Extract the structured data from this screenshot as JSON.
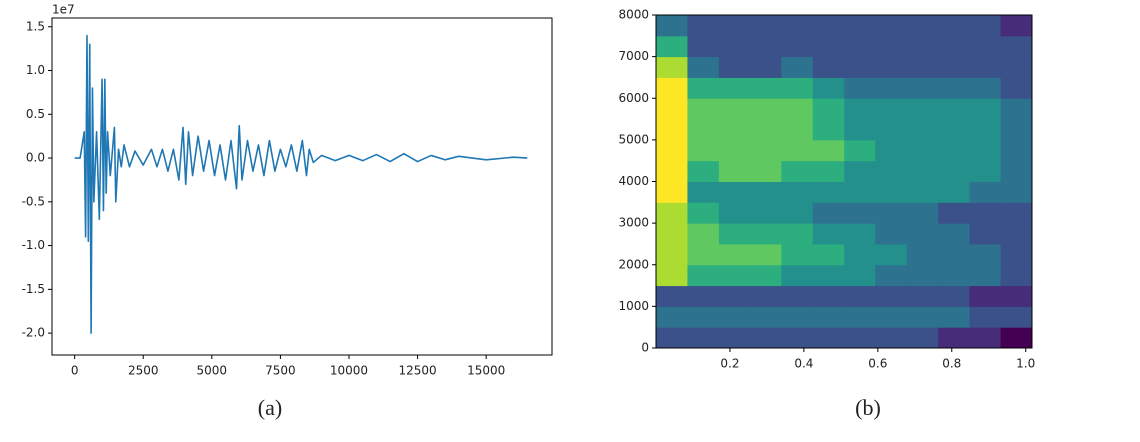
{
  "chart_data": [
    {
      "type": "line",
      "caption": "(a)",
      "y_offset_label": "1e7",
      "color": "#1f77b4",
      "grid": false,
      "x": [
        0,
        200,
        350,
        400,
        450,
        500,
        550,
        600,
        650,
        700,
        800,
        900,
        1000,
        1050,
        1100,
        1150,
        1200,
        1300,
        1450,
        1500,
        1600,
        1700,
        1800,
        2000,
        2200,
        2500,
        2800,
        3000,
        3200,
        3400,
        3600,
        3800,
        3950,
        4050,
        4150,
        4300,
        4500,
        4700,
        4900,
        5100,
        5300,
        5500,
        5700,
        5900,
        6000,
        6100,
        6300,
        6500,
        6700,
        6900,
        7100,
        7300,
        7500,
        7700,
        7900,
        8100,
        8300,
        8450,
        8550,
        8700,
        9000,
        9500,
        10000,
        10500,
        11000,
        11500,
        12000,
        12500,
        13000,
        13500,
        14000,
        15000,
        16000,
        16500
      ],
      "series": [
        {
          "values": [
            0,
            0,
            0.3,
            -0.9,
            1.4,
            -0.95,
            1.3,
            -2.0,
            0.8,
            -0.5,
            0.3,
            -0.7,
            0.9,
            -0.6,
            0.9,
            -0.4,
            0.3,
            -0.2,
            0.35,
            -0.5,
            0.1,
            -0.1,
            0.15,
            -0.1,
            0.08,
            -0.08,
            0.1,
            -0.1,
            0.1,
            -0.15,
            0.1,
            -0.25,
            0.35,
            -0.3,
            0.3,
            -0.2,
            0.25,
            -0.15,
            0.2,
            -0.2,
            0.15,
            -0.25,
            0.2,
            -0.35,
            0.37,
            -0.25,
            0.2,
            -0.15,
            0.15,
            -0.2,
            0.2,
            -0.15,
            0.1,
            -0.1,
            0.15,
            -0.15,
            0.2,
            -0.2,
            0.1,
            -0.05,
            0.03,
            -0.03,
            0.03,
            -0.03,
            0.04,
            -0.04,
            0.05,
            -0.04,
            0.03,
            -0.02,
            0.02,
            -0.02,
            0.01,
            0
          ]
        }
      ],
      "xlim": [
        -825,
        17400
      ],
      "xticks": [
        0,
        2500,
        5000,
        7500,
        10000,
        12500,
        15000
      ],
      "ylim": [
        -2.25,
        1.6
      ],
      "yticks": [
        {
          "value": -2.0,
          "label": "-2.0"
        },
        -1.5,
        {
          "value": -1.0,
          "label": "-1.0"
        },
        -0.5,
        {
          "value": 0,
          "label": "0.0"
        },
        0.5,
        {
          "value": 1.0,
          "label": "1.0"
        },
        1.5
      ]
    },
    {
      "type": "heatmap",
      "caption": "(b)",
      "colormap": "viridis",
      "xbins": [
        0,
        0.085,
        0.17,
        0.254,
        0.339,
        0.424,
        0.509,
        0.593,
        0.678,
        0.763,
        0.848,
        0.932,
        1.017
      ],
      "ybins": [
        0,
        500,
        1000,
        1500,
        2000,
        2500,
        3000,
        3500,
        4000,
        4500,
        5000,
        5500,
        6000,
        6500,
        7000,
        7500,
        8000
      ],
      "values": [
        [
          3,
          3,
          3,
          3,
          3,
          3,
          3,
          3,
          3,
          2,
          2,
          1
        ],
        [
          4,
          4,
          4,
          4,
          4,
          4,
          4,
          4,
          4,
          4,
          3,
          3
        ],
        [
          3,
          3,
          3,
          3,
          3,
          3,
          3,
          3,
          3,
          3,
          2,
          2
        ],
        [
          8,
          6,
          6,
          6,
          5,
          5,
          5,
          4,
          4,
          4,
          4,
          3
        ],
        [
          8,
          7,
          7,
          7,
          6,
          6,
          5,
          5,
          4,
          4,
          4,
          3
        ],
        [
          8,
          7,
          6,
          6,
          6,
          5,
          5,
          4,
          4,
          4,
          3,
          3
        ],
        [
          8,
          6,
          5,
          5,
          5,
          4,
          4,
          4,
          4,
          3,
          3,
          3
        ],
        [
          9,
          5,
          5,
          5,
          5,
          5,
          5,
          5,
          5,
          5,
          4,
          4
        ],
        [
          9,
          6,
          7,
          7,
          6,
          6,
          5,
          5,
          5,
          5,
          5,
          4
        ],
        [
          9,
          7,
          7,
          7,
          7,
          7,
          6,
          5,
          5,
          5,
          5,
          4
        ],
        [
          9,
          7,
          7,
          7,
          7,
          6,
          5,
          5,
          5,
          5,
          5,
          4
        ],
        [
          9,
          7,
          7,
          7,
          7,
          6,
          5,
          5,
          5,
          5,
          5,
          4
        ],
        [
          9,
          6,
          6,
          6,
          6,
          5,
          4,
          4,
          4,
          4,
          4,
          3
        ],
        [
          8,
          4,
          3,
          3,
          4,
          3,
          3,
          3,
          3,
          3,
          3,
          3
        ],
        [
          6,
          3,
          3,
          3,
          3,
          3,
          3,
          3,
          3,
          3,
          3,
          3
        ],
        [
          4,
          3,
          3,
          3,
          3,
          3,
          3,
          3,
          3,
          3,
          3,
          2
        ]
      ],
      "xlim": [
        0,
        1.017
      ],
      "xticks": [
        0.2,
        0.4,
        0.6,
        0.8,
        {
          "value": 1.0,
          "label": "1.0"
        }
      ],
      "ylim": [
        0,
        8000
      ],
      "yticks": [
        0,
        1000,
        2000,
        3000,
        4000,
        5000,
        6000,
        7000,
        8000
      ]
    }
  ]
}
